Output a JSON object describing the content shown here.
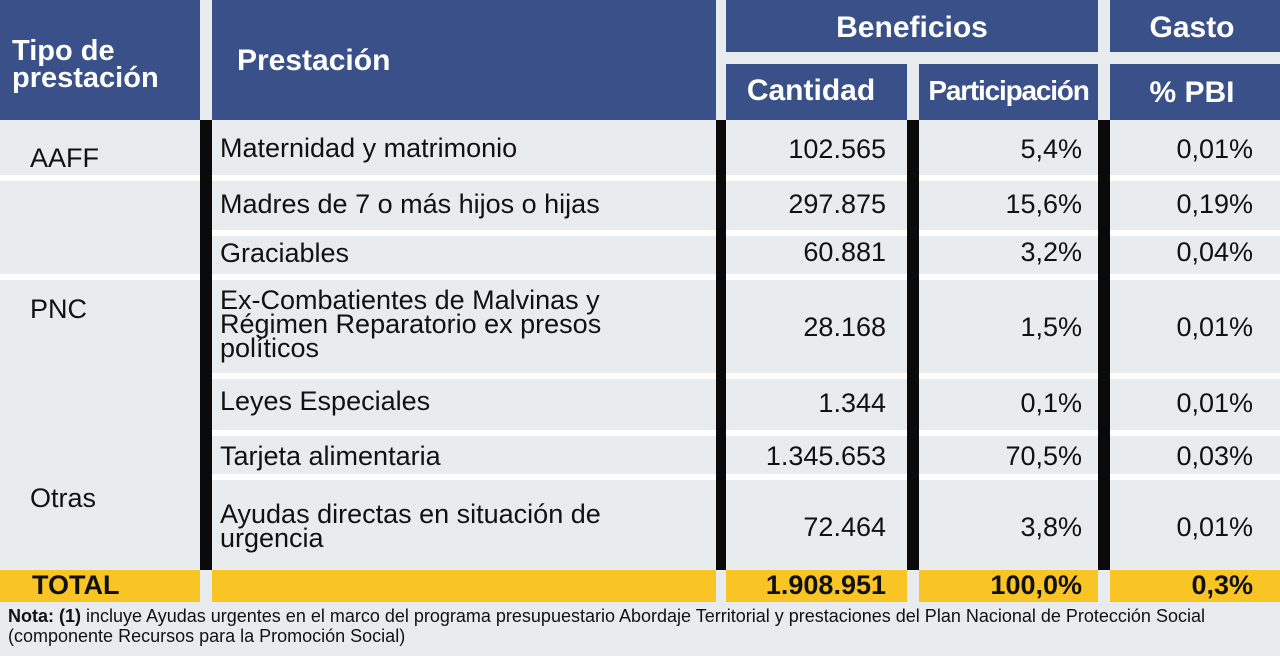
{
  "header": {
    "tipo": "Tipo de prestación",
    "prestacion": "Prestación",
    "beneficios": "Beneficios",
    "gasto": "Gasto",
    "cantidad": "Cantidad",
    "participacion": "Participación",
    "pbi": "% PBI"
  },
  "groups": {
    "aaff": "AAFF",
    "pnc": "PNC",
    "otras": "Otras"
  },
  "rows": [
    {
      "prestacion": "Maternidad y matrimonio",
      "cantidad": "102.565",
      "participacion": "5,4%",
      "pbi": "0,01%"
    },
    {
      "prestacion": "Madres de 7 o más hijos o hijas",
      "cantidad": "297.875",
      "participacion": "15,6%",
      "pbi": "0,19%"
    },
    {
      "prestacion": "Graciables",
      "cantidad": "60.881",
      "participacion": "3,2%",
      "pbi": "0,04%"
    },
    {
      "prestacion": "Ex-Combatientes de Malvinas y Régimen Reparatorio ex presos políticos",
      "cantidad": "28.168",
      "participacion": "1,5%",
      "pbi": "0,01%"
    },
    {
      "prestacion": "Leyes Especiales",
      "cantidad": "1.344",
      "participacion": "0,1%",
      "pbi": "0,01%"
    },
    {
      "prestacion": "Tarjeta alimentaria",
      "cantidad": "1.345.653",
      "participacion": "70,5%",
      "pbi": "0,03%"
    },
    {
      "prestacion": "Ayudas directas en situación de urgencia",
      "cantidad": "72.464",
      "participacion": "3,8%",
      "pbi": "0,01%"
    }
  ],
  "total": {
    "label": "TOTAL",
    "cantidad": "1.908.951",
    "participacion": "100,0%",
    "pbi": "0,3%"
  },
  "note": {
    "prefix": "Nota: (1)",
    "text": " incluye Ayudas urgentes en el marco del programa presupuestario Abordaje Territorial y prestaciones del Plan Nacional de Protección Social (componente Recursos para la Promoción Social)"
  },
  "colors": {
    "header": "#3a5089",
    "total": "#f9c524",
    "body": "#e9ecef"
  }
}
